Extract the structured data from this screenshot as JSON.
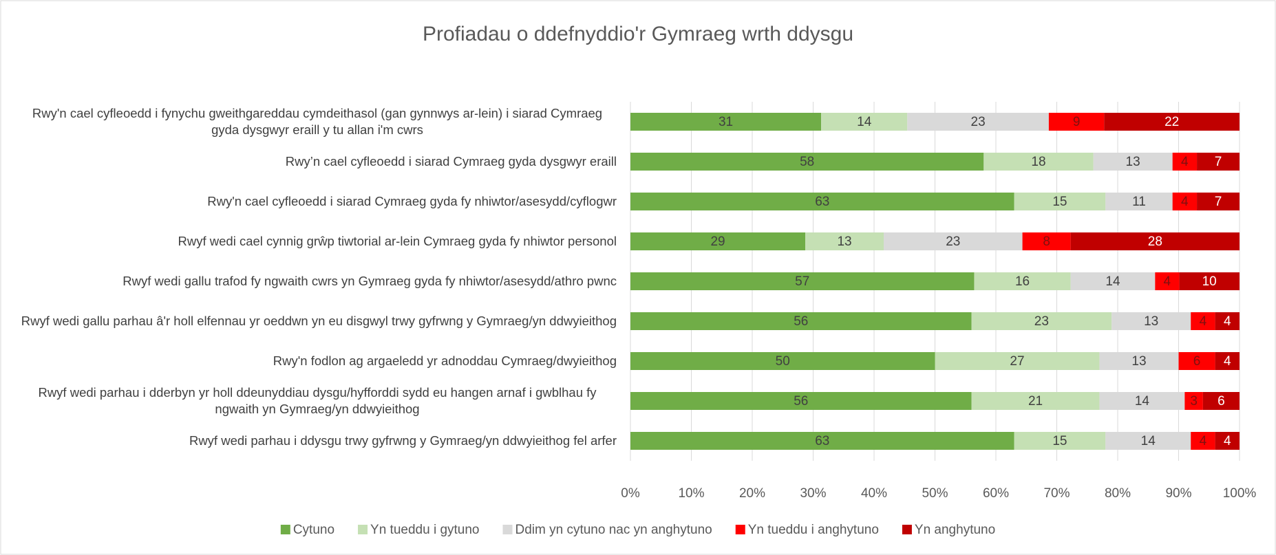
{
  "chart_data": {
    "type": "bar",
    "orientation": "horizontal",
    "stacked": "percent",
    "title": "Profiadau o ddefnyddio'r Gymraeg wrth ddysgu",
    "categories": [
      "Rwy'n cael cyfleoedd i fynychu gweithgareddau cymdeithasol (gan gynnwys ar-lein) i siarad Cymraeg gyda dysgwyr eraill y tu allan i'm cwrs",
      "Rwy’n cael cyfleoedd i siarad Cymraeg gyda dysgwyr eraill",
      "Rwy'n cael cyfleoedd i siarad Cymraeg gyda fy nhiwtor/asesydd/cyflogwr",
      "Rwyf wedi cael cynnig grŵp tiwtorial ar-lein Cymraeg gyda fy nhiwtor personol",
      "Rwyf wedi gallu trafod fy ngwaith cwrs yn Gymraeg gyda fy nhiwtor/asesydd/athro pwnc",
      "Rwyf wedi gallu parhau â'r holl elfennau yr oeddwn yn eu disgwyl trwy gyfrwng y Gymraeg/yn ddwyieithog",
      "Rwy'n fodlon ag argaeledd yr adnoddau Cymraeg/dwyieithog",
      "Rwyf wedi parhau i dderbyn yr holl ddeunyddiau dysgu/hyfforddi sydd eu hangen arnaf i gwblhau fy ngwaith yn Gymraeg/yn ddwyieithog",
      "Rwyf wedi parhau i ddysgu trwy gyfrwng y Gymraeg/yn ddwyieithog fel arfer"
    ],
    "series": [
      {
        "name": "Cytuno",
        "color": "#70ad47",
        "label_color": "#404040",
        "values": [
          31,
          58,
          63,
          29,
          57,
          56,
          50,
          56,
          63
        ]
      },
      {
        "name": "Yn tueddu i gytuno",
        "color": "#c5e0b4",
        "label_color": "#404040",
        "values": [
          14,
          18,
          15,
          13,
          16,
          23,
          27,
          21,
          15
        ]
      },
      {
        "name": "Ddim yn cytuno nac yn anghytuno",
        "color": "#d9d9d9",
        "label_color": "#404040",
        "values": [
          23,
          13,
          11,
          23,
          14,
          13,
          13,
          14,
          14
        ]
      },
      {
        "name": "Yn tueddu i anghytuno",
        "color": "#ff0000",
        "label_color": "#7f1010",
        "values": [
          9,
          4,
          4,
          8,
          4,
          4,
          6,
          3,
          4
        ]
      },
      {
        "name": "Yn anghytuno",
        "color": "#c00000",
        "label_color": "#ffffff",
        "values": [
          22,
          7,
          7,
          28,
          10,
          4,
          4,
          6,
          4
        ]
      }
    ],
    "xlim": [
      0,
      100
    ],
    "xticks": [
      {
        "value": 0,
        "label": "0%"
      },
      {
        "value": 10,
        "label": "10%"
      },
      {
        "value": 20,
        "label": "20%"
      },
      {
        "value": 30,
        "label": "30%"
      },
      {
        "value": 40,
        "label": "40%"
      },
      {
        "value": 50,
        "label": "50%"
      },
      {
        "value": 60,
        "label": "60%"
      },
      {
        "value": 70,
        "label": "70%"
      },
      {
        "value": 80,
        "label": "80%"
      },
      {
        "value": 90,
        "label": "90%"
      },
      {
        "value": 100,
        "label": "100%"
      }
    ],
    "grid": true,
    "legend": "bottom"
  }
}
